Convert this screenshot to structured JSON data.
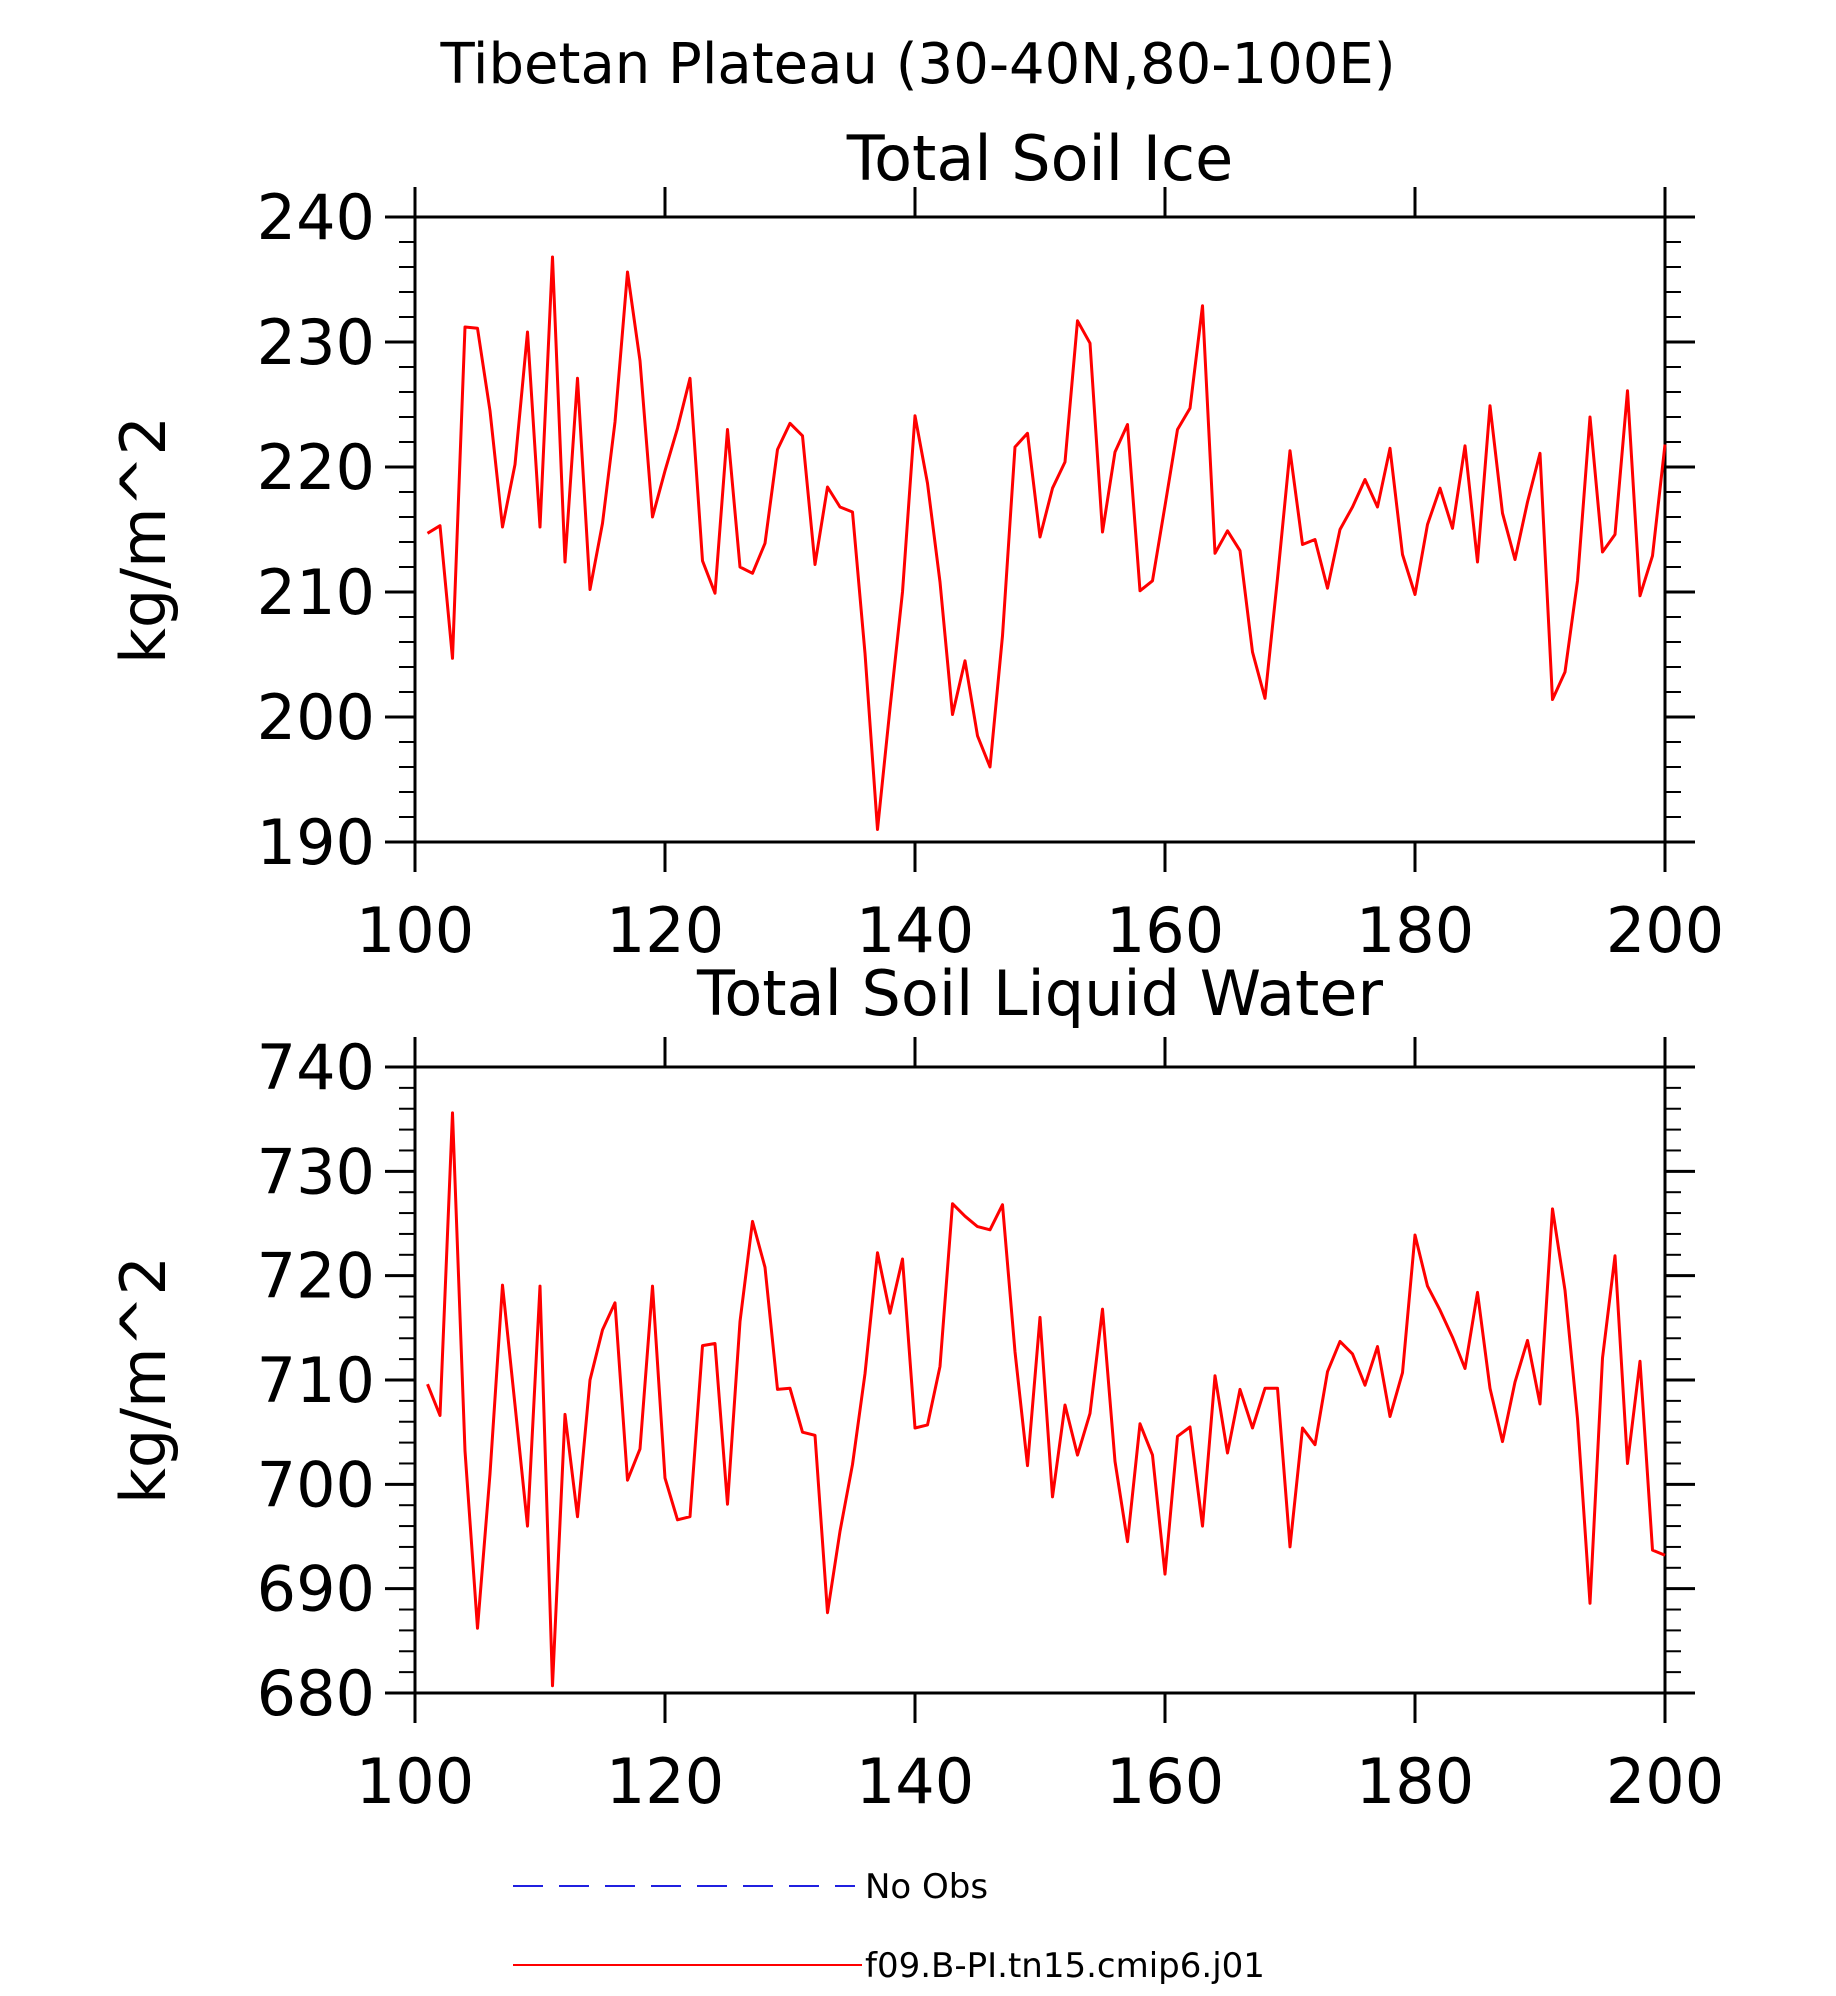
{
  "main_title": "Tibetan Plateau (30-40N,80-100E)",
  "colors": {
    "model_line": "#ff0000",
    "obs_line": "#2020e0",
    "axes": "#000000"
  },
  "legend": [
    {
      "label": "No Obs",
      "style": "dashed",
      "color": "#2020e0"
    },
    {
      "label": "f09.B-PI.tn15.cmip6.j01",
      "style": "solid",
      "color": "#ff0000"
    }
  ],
  "chart_data": [
    {
      "type": "line",
      "title": "Total Soil Ice",
      "xlabel": "",
      "ylabel": "kg/m^2",
      "xlim": [
        100,
        200
      ],
      "ylim": [
        190,
        240
      ],
      "xticks": [
        100,
        120,
        140,
        160,
        180,
        200
      ],
      "yticks": [
        190,
        200,
        210,
        220,
        230,
        240
      ],
      "grid": false,
      "series": [
        {
          "name": "f09.B-PI.tn15.cmip6.j01",
          "color": "#ff0000",
          "x": [
            101,
            102,
            103,
            104,
            105,
            106,
            107,
            108,
            109,
            110,
            111,
            112,
            113,
            114,
            115,
            116,
            117,
            118,
            119,
            120,
            121,
            122,
            123,
            124,
            125,
            126,
            127,
            128,
            129,
            130,
            131,
            132,
            133,
            134,
            135,
            136,
            137,
            138,
            139,
            140,
            141,
            142,
            143,
            144,
            145,
            146,
            147,
            148,
            149,
            150,
            151,
            152,
            153,
            154,
            155,
            156,
            157,
            158,
            159,
            160,
            161,
            162,
            163,
            164,
            165,
            166,
            167,
            168,
            169,
            170,
            171,
            172,
            173,
            174,
            175,
            176,
            177,
            178,
            179,
            180,
            181,
            182,
            183,
            184,
            185,
            186,
            187,
            188,
            189,
            190,
            191,
            192,
            193,
            194,
            195,
            196,
            197,
            198,
            199,
            200
          ],
          "values": [
            214.7,
            215.3,
            204.7,
            231.2,
            231.1,
            224.5,
            215.2,
            220.2,
            230.8,
            215.2,
            236.8,
            212.4,
            227.1,
            210.2,
            215.5,
            223.6,
            235.6,
            228.5,
            216,
            219.7,
            223.1,
            227.1,
            212.5,
            209.9,
            223,
            212,
            211.5,
            213.9,
            221.4,
            223.5,
            222.5,
            212.2,
            218.4,
            216.8,
            216.4,
            205.1,
            191,
            200.7,
            210,
            224.1,
            218.7,
            210.8,
            200.2,
            204.5,
            198.5,
            196,
            206.5,
            221.6,
            222.7,
            214.4,
            218.3,
            220.4,
            231.7,
            229.9,
            214.8,
            221.2,
            223.4,
            210.1,
            210.9,
            216.9,
            223,
            224.7,
            232.9,
            213.1,
            214.9,
            213.3,
            205.2,
            201.5,
            211.1,
            221.3,
            213.8,
            214.2,
            210.3,
            215,
            216.8,
            219,
            216.8,
            221.5,
            213,
            209.8,
            215.4,
            218.3,
            215.1,
            221.7,
            212.4,
            224.9,
            216.3,
            212.6,
            217.2,
            221.1,
            201.4,
            203.6,
            210.9,
            224,
            213.2,
            214.6,
            226.1,
            209.7,
            212.9,
            221.8
          ]
        }
      ]
    },
    {
      "type": "line",
      "title": "Total Soil Liquid Water",
      "xlabel": "",
      "ylabel": "kg/m^2",
      "xlim": [
        100,
        200
      ],
      "ylim": [
        680,
        740
      ],
      "xticks": [
        100,
        120,
        140,
        160,
        180,
        200
      ],
      "yticks": [
        680,
        690,
        700,
        710,
        720,
        730,
        740
      ],
      "grid": false,
      "series": [
        {
          "name": "f09.B-PI.tn15.cmip6.j01",
          "color": "#ff0000",
          "x": [
            101,
            102,
            103,
            104,
            105,
            106,
            107,
            108,
            109,
            110,
            111,
            112,
            113,
            114,
            115,
            116,
            117,
            118,
            119,
            120,
            121,
            122,
            123,
            124,
            125,
            126,
            127,
            128,
            129,
            130,
            131,
            132,
            133,
            134,
            135,
            136,
            137,
            138,
            139,
            140,
            141,
            142,
            143,
            144,
            145,
            146,
            147,
            148,
            149,
            150,
            151,
            152,
            153,
            154,
            155,
            156,
            157,
            158,
            159,
            160,
            161,
            162,
            163,
            164,
            165,
            166,
            167,
            168,
            169,
            170,
            171,
            172,
            173,
            174,
            175,
            176,
            177,
            178,
            179,
            180,
            181,
            182,
            183,
            184,
            185,
            186,
            187,
            188,
            189,
            190,
            191,
            192,
            193,
            194,
            195,
            196,
            197,
            198,
            199,
            200
          ],
          "values": [
            709.6,
            706.6,
            735.6,
            703.2,
            686.2,
            701,
            719.1,
            707.6,
            696,
            719,
            680.7,
            706.7,
            696.9,
            710,
            714.8,
            717.4,
            700.4,
            703.4,
            719,
            700.6,
            696.6,
            696.9,
            713.3,
            713.5,
            698.1,
            715.6,
            725.2,
            720.8,
            709.1,
            709.2,
            705,
            704.7,
            687.7,
            695.5,
            701.9,
            710.6,
            722.2,
            716.4,
            721.6,
            705.4,
            705.7,
            711.3,
            726.9,
            725.7,
            724.7,
            724.4,
            726.8,
            712.7,
            701.8,
            716,
            698.8,
            707.6,
            702.8,
            706.8,
            716.8,
            702.2,
            694.5,
            705.8,
            702.8,
            691.4,
            704.6,
            705.5,
            696,
            710.4,
            703,
            709.1,
            705.4,
            709.2,
            709.2,
            694,
            705.4,
            703.8,
            710.8,
            713.7,
            712.5,
            709.5,
            713.2,
            706.5,
            710.7,
            723.9,
            719,
            716.7,
            714.1,
            711.1,
            718.4,
            709.2,
            704.1,
            709.8,
            713.8,
            707.7,
            726.4,
            718.6,
            706.3,
            688.6,
            712.1,
            721.9,
            702,
            711.8,
            693.7,
            693.2
          ]
        }
      ]
    }
  ]
}
